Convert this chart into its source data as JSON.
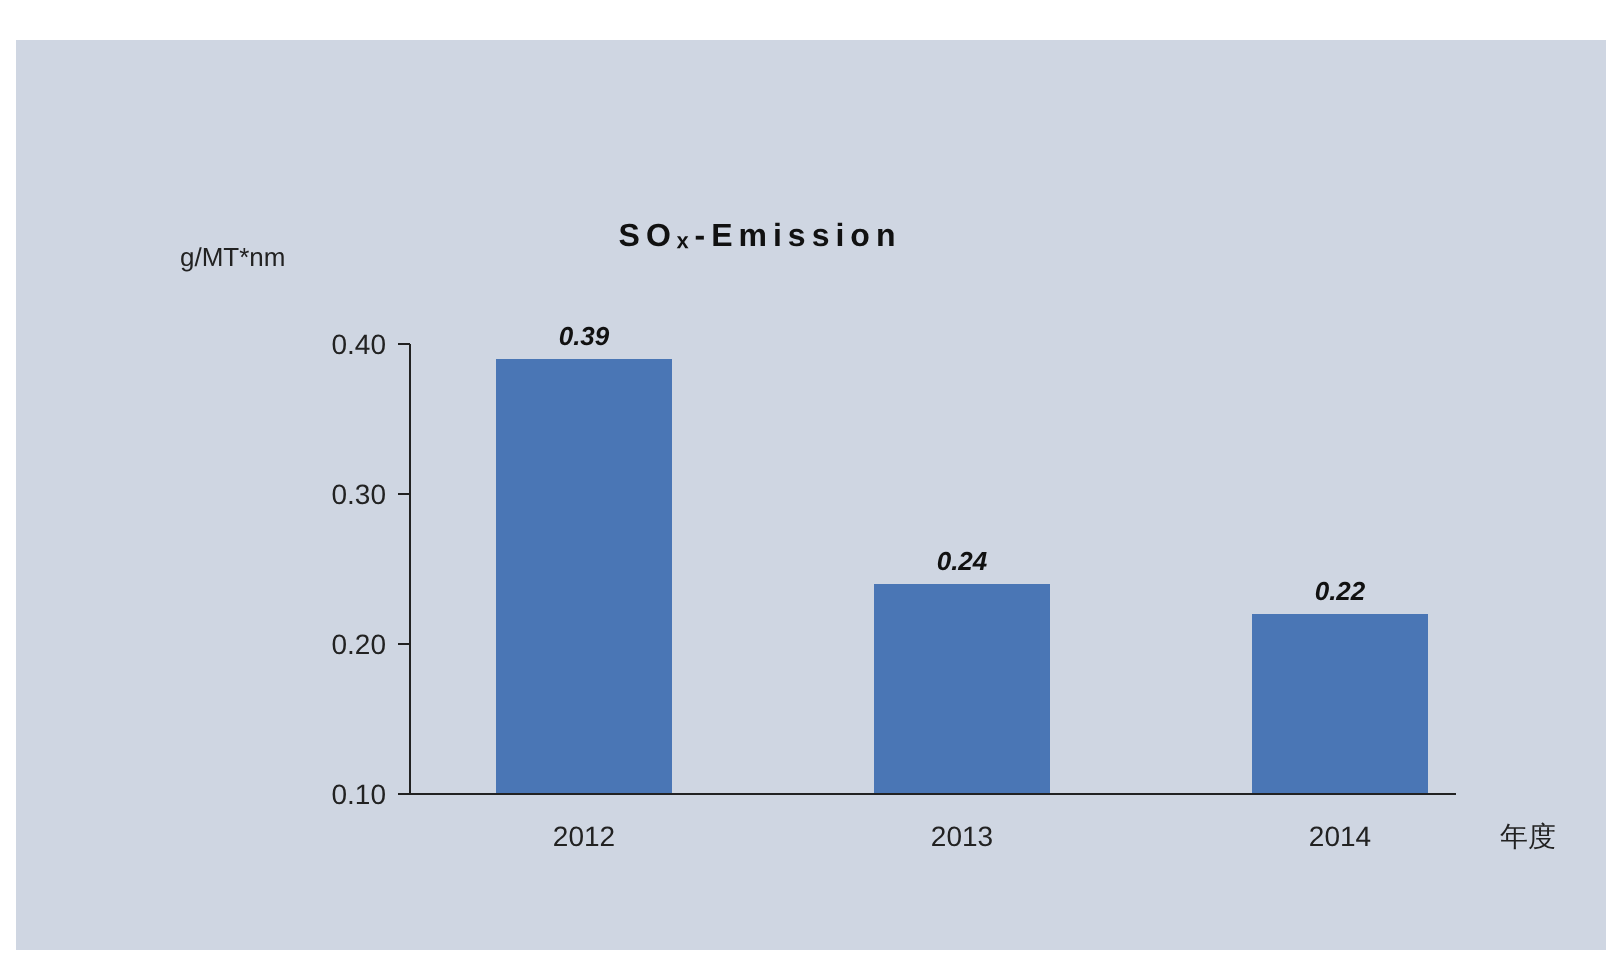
{
  "chart_data": {
    "type": "bar",
    "title": "SOₓ-Emission",
    "ylabel": "g/MT*nm",
    "xlabel": "年度",
    "categories": [
      "2012",
      "2013",
      "2014"
    ],
    "values": [
      0.39,
      0.24,
      0.22
    ],
    "color": "#4a76b5",
    "ylim": [
      0.1,
      0.4
    ],
    "yticks": [
      {
        "value": 0.1,
        "label": "0.10"
      },
      {
        "value": 0.2,
        "label": "0.20"
      },
      {
        "value": 0.3,
        "label": "0.30"
      },
      {
        "value": 0.4,
        "label": "0.40"
      }
    ],
    "data_labels": true
  }
}
